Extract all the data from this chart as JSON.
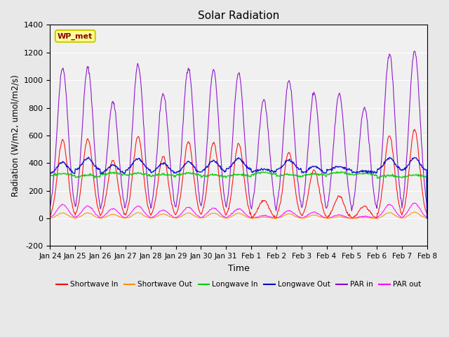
{
  "title": "Solar Radiation",
  "xlabel": "Time",
  "ylabel": "Radiation (W/m2, umol/m2/s)",
  "ylim": [
    -200,
    1400
  ],
  "yticks": [
    -200,
    0,
    200,
    400,
    600,
    800,
    1000,
    1200,
    1400
  ],
  "xtick_labels": [
    "Jan 24",
    "Jan 25",
    "Jan 26",
    "Jan 27",
    "Jan 28",
    "Jan 29",
    "Jan 30",
    "Jan 31",
    "Feb 1",
    "Feb 2",
    "Feb 3",
    "Feb 4",
    "Feb 5",
    "Feb 6",
    "Feb 7",
    "Feb 8"
  ],
  "annotation_text": "WP_met",
  "colors": {
    "shortwave_in": "#ff0000",
    "shortwave_out": "#ff8c00",
    "longwave_in": "#00cc00",
    "longwave_out": "#0000cc",
    "par_in": "#8800cc",
    "par_out": "#ff00ff"
  },
  "bg_color": "#e8e8e8",
  "plot_bg_color": "#f0f0f0",
  "n_days": 15,
  "points_per_day": 48
}
